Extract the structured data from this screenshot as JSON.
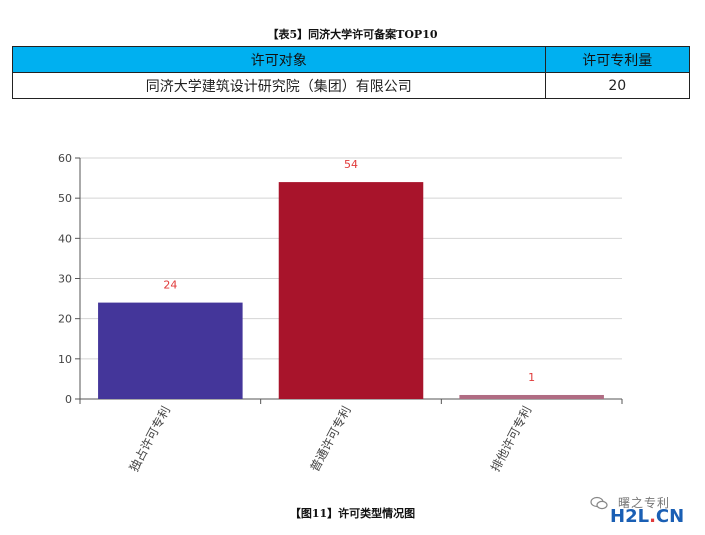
{
  "table": {
    "title": "【表5】同济大学许可备案TOP10",
    "headers": [
      "许可对象",
      "许可专利量"
    ],
    "rows": [
      [
        "同济大学建筑设计研究院（集团）有限公司",
        "20"
      ]
    ]
  },
  "chart_data": {
    "type": "bar",
    "categories": [
      "独占许可专利",
      "普通许可专利",
      "排他许可专利"
    ],
    "values": [
      24,
      54,
      1
    ],
    "colors": [
      "#44369a",
      "#a8142b",
      "#b06c83"
    ],
    "ylim": [
      0,
      60
    ],
    "yticks": [
      0,
      10,
      20,
      30,
      40,
      50,
      60
    ],
    "data_labels": [
      "24",
      "54",
      "1"
    ],
    "label_color": "#e03a3a",
    "grid": true
  },
  "caption": "【图11】许可类型情况图",
  "watermark": {
    "text": "曙之专利",
    "logo_main": "H2L",
    "logo_dot": ".",
    "logo_suffix": "CN"
  }
}
